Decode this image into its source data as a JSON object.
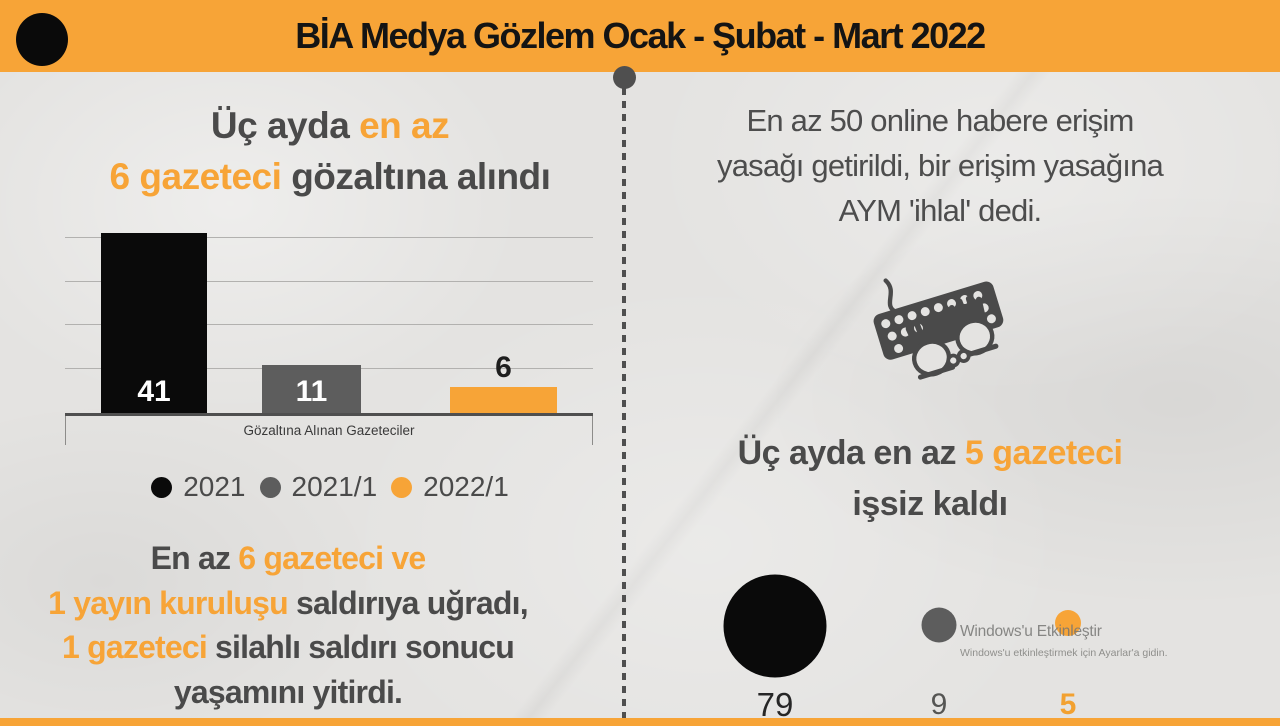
{
  "header": {
    "title": "BİA Medya Gözlem Ocak - Şubat - Mart 2022",
    "logo": "black-circle-logo"
  },
  "colors": {
    "accent_orange": "#F7A437",
    "series_black": "#0A0A0A",
    "series_gray": "#5D5D5D",
    "text_dark_gray": "#4A4A4A",
    "paper_background": "#E4E3E1"
  },
  "left": {
    "heading": {
      "seg1": "Üç ayda ",
      "seg2_highlight": "en az",
      "seg3_highlight": "6 gazeteci",
      "seg4": " gözaltına alındı"
    },
    "paragraph": {
      "seg1": "En az ",
      "seg2_highlight": "6 gazeteci ve",
      "seg3_highlight": "1 yayın kuruluşu",
      "seg4": " saldırıya uğradı,",
      "seg5_highlight": "1 gazeteci",
      "seg6": " silahlı saldırı sonucu",
      "seg7": "yaşamını yitirdi."
    }
  },
  "right": {
    "para1": {
      "line1": "En az 50 online habere erişim",
      "line2": "yasağı getirildi, bir erişim yasağına",
      "line3": "AYM 'ihlal' dedi."
    },
    "icon": "keyboard-typing-hands-icon",
    "para2": {
      "seg1": "Üç ayda en az ",
      "seg2_highlight": "5 gazeteci",
      "seg3": "işsiz kaldı"
    }
  },
  "watermark": {
    "line1": "Windows'u Etkinleştir",
    "line2": "Windows'u etkinleştirmek için Ayarlar'a gidin."
  },
  "chart_data": [
    {
      "type": "bar",
      "title": "Üç ayda en az 6 gazeteci gözaltına alındı",
      "categories": [
        "2021",
        "2021/1",
        "2022/1"
      ],
      "values": [
        41,
        11,
        6
      ],
      "colors": [
        "#0A0A0A",
        "#5D5D5D",
        "#F7A437"
      ],
      "xlabel": "Gözaltına Alınan Gazeteciler",
      "ylabel": "",
      "ylim": [
        0,
        42
      ],
      "gridline_step": 10,
      "grid": true,
      "legend_position": "bottom"
    },
    {
      "type": "bubble",
      "title": "Üç ayda en az 5 gazeteci işsiz kaldı",
      "categories": [
        "2021",
        "2021/1",
        "2022/1"
      ],
      "values": [
        79,
        9,
        5
      ],
      "colors": [
        "#0A0A0A",
        "#5D5D5D",
        "#F7A437"
      ]
    }
  ]
}
